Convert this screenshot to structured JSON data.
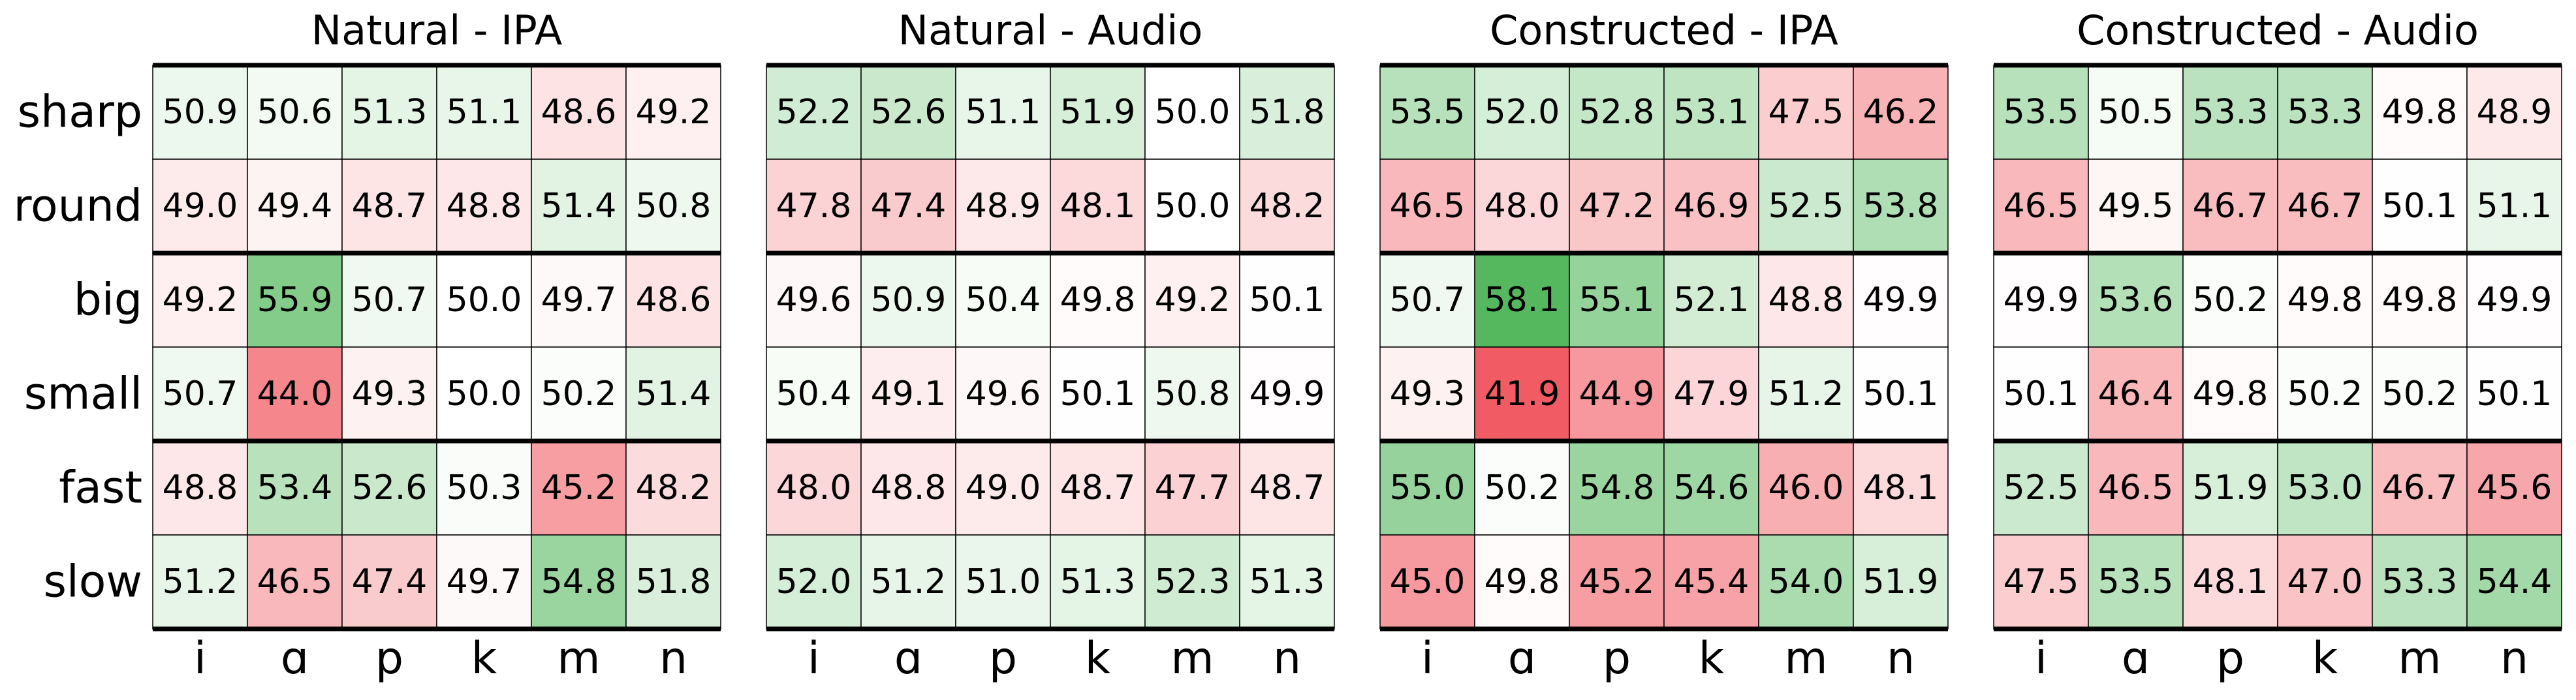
{
  "chart_data": {
    "type": "heatmap",
    "row_labels": [
      "sharp",
      "round",
      "big",
      "small",
      "fast",
      "slow"
    ],
    "col_labels": [
      "i",
      "ɑ",
      "p",
      "k",
      "m",
      "n"
    ],
    "color_center": 50.0,
    "colors": {
      "low": "#f0545c",
      "mid": "#ffffff",
      "high": "#4db557"
    },
    "panels": [
      {
        "title": "Natural - IPA",
        "values": [
          [
            50.9,
            50.6,
            51.3,
            51.1,
            48.6,
            49.2
          ],
          [
            49.0,
            49.4,
            48.7,
            48.8,
            51.4,
            50.8
          ],
          [
            49.2,
            55.9,
            50.7,
            50.0,
            49.7,
            48.6
          ],
          [
            50.7,
            44.0,
            49.3,
            50.0,
            50.2,
            51.4
          ],
          [
            48.8,
            53.4,
            52.6,
            50.3,
            45.2,
            48.2
          ],
          [
            51.2,
            46.5,
            47.4,
            49.7,
            54.8,
            51.8
          ]
        ]
      },
      {
        "title": "Natural - Audio",
        "values": [
          [
            52.2,
            52.6,
            51.1,
            51.9,
            50.0,
            51.8
          ],
          [
            47.8,
            47.4,
            48.9,
            48.1,
            50.0,
            48.2
          ],
          [
            49.6,
            50.9,
            50.4,
            49.8,
            49.2,
            50.1
          ],
          [
            50.4,
            49.1,
            49.6,
            50.1,
            50.8,
            49.9
          ],
          [
            48.0,
            48.8,
            49.0,
            48.7,
            47.7,
            48.7
          ],
          [
            52.0,
            51.2,
            51.0,
            51.3,
            52.3,
            51.3
          ]
        ]
      },
      {
        "title": "Constructed - IPA",
        "values": [
          [
            53.5,
            52.0,
            52.8,
            53.1,
            47.5,
            46.2
          ],
          [
            46.5,
            48.0,
            47.2,
            46.9,
            52.5,
            53.8
          ],
          [
            50.7,
            58.1,
            55.1,
            52.1,
            48.8,
            49.9
          ],
          [
            49.3,
            41.9,
            44.9,
            47.9,
            51.2,
            50.1
          ],
          [
            55.0,
            50.2,
            54.8,
            54.6,
            46.0,
            48.1
          ],
          [
            45.0,
            49.8,
            45.2,
            45.4,
            54.0,
            51.9
          ]
        ]
      },
      {
        "title": "Constructed - Audio",
        "values": [
          [
            53.5,
            50.5,
            53.3,
            53.3,
            49.8,
            48.9
          ],
          [
            46.5,
            49.5,
            46.7,
            46.7,
            50.1,
            51.1
          ],
          [
            49.9,
            53.6,
            50.2,
            49.8,
            49.8,
            49.9
          ],
          [
            50.1,
            46.4,
            49.8,
            50.2,
            50.2,
            50.1
          ],
          [
            52.5,
            46.5,
            51.9,
            53.0,
            46.7,
            45.6
          ],
          [
            47.5,
            53.5,
            48.1,
            47.0,
            53.3,
            54.4
          ]
        ]
      }
    ]
  }
}
